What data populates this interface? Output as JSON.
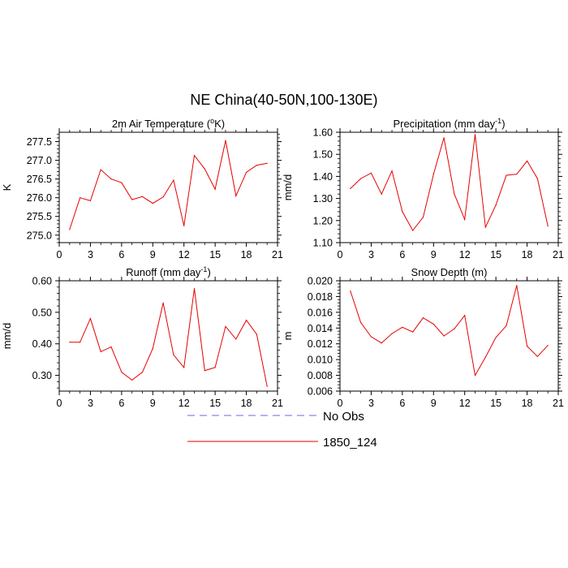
{
  "figure": {
    "title": "NE China(40-50N,100-130E)"
  },
  "legend": [
    {
      "name": "No Obs",
      "color": "#6a6ae6",
      "dash": true
    },
    {
      "name": "1850_124",
      "color": "#e60000",
      "dash": false
    }
  ],
  "chart_data": [
    {
      "type": "line",
      "title_prefix": "2m Air Temperature (",
      "title_sup": "o",
      "title_suffix": "K)",
      "ylabel": "K",
      "xlim": [
        0,
        21
      ],
      "ylim": [
        274.8,
        277.75
      ],
      "xticks": [
        0,
        3,
        6,
        9,
        12,
        15,
        18,
        21
      ],
      "yticks": [
        275.0,
        275.5,
        276.0,
        276.5,
        277.0,
        277.5
      ],
      "yticks_text": [
        "275.0",
        "275.5",
        "276.0",
        "276.5",
        "277.0",
        "277.5"
      ],
      "series": [
        {
          "name": "1850_124",
          "x": [
            1,
            2,
            3,
            4,
            5,
            6,
            7,
            8,
            9,
            10,
            11,
            12,
            13,
            14,
            15,
            16,
            17,
            18,
            19,
            20
          ],
          "values": [
            275.15,
            276.0,
            275.92,
            276.75,
            276.5,
            276.4,
            275.95,
            276.03,
            275.85,
            276.02,
            276.47,
            275.25,
            277.13,
            276.77,
            276.23,
            277.53,
            276.05,
            276.68,
            276.87,
            276.92
          ]
        }
      ]
    },
    {
      "type": "line",
      "title_prefix": "Precipitation (mm day",
      "title_sup": "-1",
      "title_suffix": ")",
      "ylabel": "mm/d",
      "xlim": [
        0,
        21
      ],
      "ylim": [
        1.1,
        1.6
      ],
      "xticks": [
        0,
        3,
        6,
        9,
        12,
        15,
        18,
        21
      ],
      "yticks": [
        1.1,
        1.2,
        1.3,
        1.4,
        1.5,
        1.6
      ],
      "yticks_text": [
        "1.10",
        "1.20",
        "1.30",
        "1.40",
        "1.50",
        "1.60"
      ],
      "series": [
        {
          "name": "1850_124",
          "x": [
            1,
            2,
            3,
            4,
            5,
            6,
            7,
            8,
            9,
            10,
            11,
            12,
            13,
            14,
            15,
            16,
            17,
            18,
            19,
            20
          ],
          "values": [
            1.345,
            1.39,
            1.415,
            1.32,
            1.425,
            1.24,
            1.155,
            1.215,
            1.41,
            1.575,
            1.32,
            1.205,
            1.59,
            1.17,
            1.27,
            1.405,
            1.41,
            1.47,
            1.39,
            1.175
          ]
        }
      ]
    },
    {
      "type": "line",
      "title_prefix": "Runoff (mm day",
      "title_sup": "-1",
      "title_suffix": ")",
      "ylabel": "mm/d",
      "xlim": [
        0,
        21
      ],
      "ylim": [
        0.25,
        0.6
      ],
      "xticks": [
        0,
        3,
        6,
        9,
        12,
        15,
        18,
        21
      ],
      "yticks": [
        0.3,
        0.4,
        0.5,
        0.6
      ],
      "yticks_text": [
        "0.30",
        "0.40",
        "0.50",
        "0.60"
      ],
      "series": [
        {
          "name": "1850_124",
          "x": [
            1,
            2,
            3,
            4,
            5,
            6,
            7,
            8,
            9,
            10,
            11,
            12,
            13,
            14,
            15,
            16,
            17,
            18,
            19,
            20
          ],
          "values": [
            0.405,
            0.405,
            0.48,
            0.375,
            0.39,
            0.31,
            0.285,
            0.31,
            0.385,
            0.53,
            0.365,
            0.325,
            0.575,
            0.315,
            0.325,
            0.455,
            0.415,
            0.475,
            0.43,
            0.265
          ]
        }
      ]
    },
    {
      "type": "line",
      "title_prefix": "Snow Depth (m)",
      "title_sup": "",
      "title_suffix": "",
      "ylabel": "m",
      "xlim": [
        0,
        21
      ],
      "ylim": [
        0.006,
        0.02
      ],
      "xticks": [
        0,
        3,
        6,
        9,
        12,
        15,
        18,
        21
      ],
      "yticks": [
        0.006,
        0.008,
        0.01,
        0.012,
        0.014,
        0.016,
        0.018,
        0.02
      ],
      "yticks_text": [
        "0.006",
        "0.008",
        "0.010",
        "0.012",
        "0.014",
        "0.016",
        "0.018",
        "0.020"
      ],
      "series": [
        {
          "name": "1850_124",
          "x": [
            1,
            2,
            3,
            4,
            5,
            6,
            7,
            8,
            9,
            10,
            11,
            12,
            13,
            14,
            15,
            16,
            17,
            18,
            19,
            20
          ],
          "values": [
            0.0187,
            0.0147,
            0.0129,
            0.0121,
            0.0133,
            0.0141,
            0.0135,
            0.0153,
            0.0145,
            0.013,
            0.0139,
            0.0156,
            0.008,
            0.0103,
            0.0128,
            0.0143,
            0.0194,
            0.0117,
            0.0104,
            0.0118
          ]
        }
      ]
    }
  ]
}
